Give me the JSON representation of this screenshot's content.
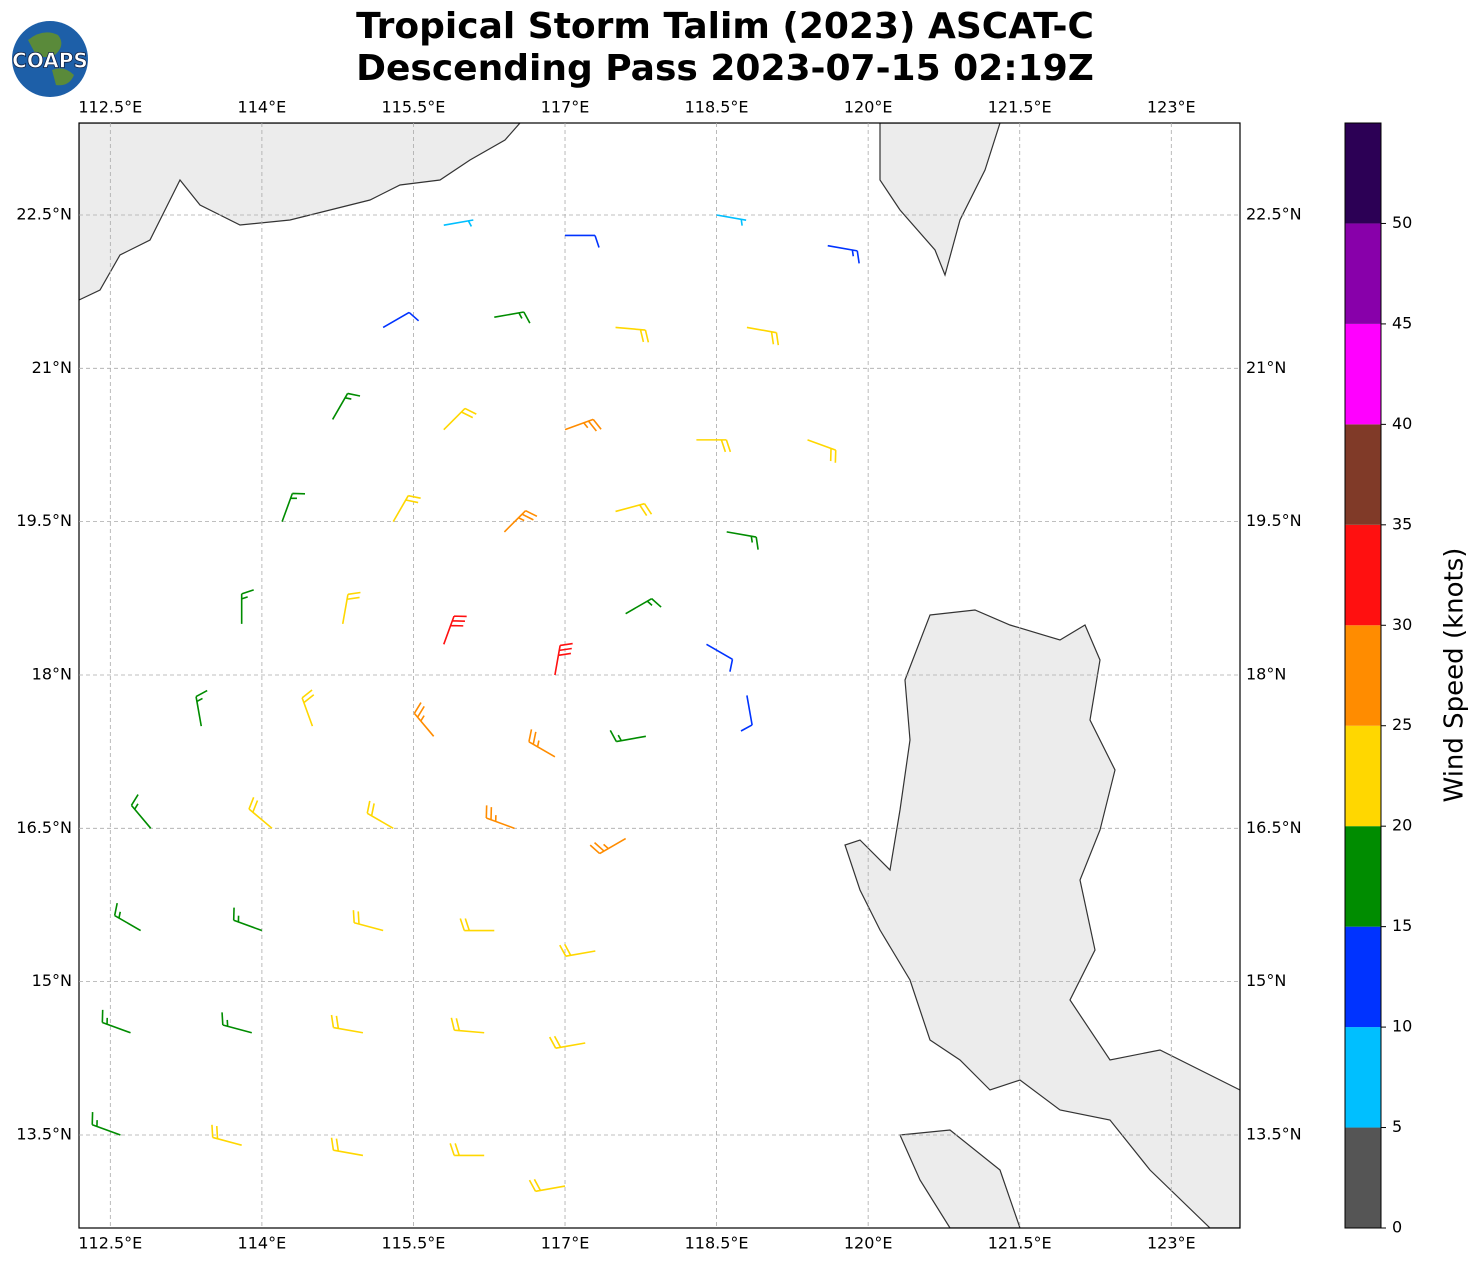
{
  "chart_data": {
    "type": "wind-barb",
    "title_line1": "Tropical Storm Talim (2023) ASCAT-C",
    "title_line2": "Descending Pass 2023-07-15 02:19Z",
    "logo": "COAPS",
    "xlim": [
      112.19,
      123.68
    ],
    "ylim": [
      12.59,
      23.4
    ],
    "xticks": [
      {
        "value": 112.5,
        "label": "112.5°E"
      },
      {
        "value": 114,
        "label": "114°E"
      },
      {
        "value": 115.5,
        "label": "115.5°E"
      },
      {
        "value": 117,
        "label": "117°E"
      },
      {
        "value": 118.5,
        "label": "118.5°E"
      },
      {
        "value": 120,
        "label": "120°E"
      },
      {
        "value": 121.5,
        "label": "121.5°E"
      },
      {
        "value": 123,
        "label": "123°E"
      }
    ],
    "yticks": [
      {
        "value": 22.5,
        "label": "22.5°N"
      },
      {
        "value": 21,
        "label": "21°N"
      },
      {
        "value": 19.5,
        "label": "19.5°N"
      },
      {
        "value": 18,
        "label": "18°N"
      },
      {
        "value": 16.5,
        "label": "16.5°N"
      },
      {
        "value": 15,
        "label": "15°N"
      },
      {
        "value": 13.5,
        "label": "13.5°N"
      }
    ],
    "grid": true,
    "barbs": {
      "lon": [
        115.8,
        117,
        118.5,
        119.6,
        115.2,
        116.3,
        117.5,
        118.8,
        114.7,
        115.8,
        117,
        118.3,
        119.4,
        114.2,
        115.3,
        116.4,
        117.5,
        118.6,
        113.8,
        114.8,
        115.8,
        116.9,
        117.6,
        118.4,
        118.8,
        113.4,
        114.5,
        115.7,
        116.9,
        117.8,
        112.9,
        114.1,
        115.3,
        116.5,
        117.6,
        112.8,
        114,
        115.2,
        116.3,
        117.3,
        112.7,
        113.9,
        115,
        116.2,
        117.2,
        112.6,
        113.8,
        115,
        116.2,
        117
      ],
      "lat": [
        22.4,
        22.3,
        22.5,
        22.2,
        21.4,
        21.5,
        21.4,
        21.4,
        20.5,
        20.4,
        20.4,
        20.3,
        20.3,
        19.5,
        19.5,
        19.4,
        19.6,
        19.4,
        18.5,
        18.5,
        18.3,
        18,
        18.6,
        18.3,
        17.8,
        17.5,
        17.5,
        17.4,
        17.2,
        17.4,
        16.5,
        16.5,
        16.5,
        16.5,
        16.4,
        15.5,
        15.5,
        15.5,
        15.5,
        15.3,
        14.5,
        14.5,
        14.5,
        14.5,
        14.4,
        13.5,
        13.4,
        13.3,
        13.3,
        13
      ],
      "speed": [
        8,
        12,
        8,
        14,
        12,
        17,
        22,
        22,
        17,
        22,
        27,
        22,
        20,
        17,
        22,
        27,
        20,
        18,
        17,
        22,
        32,
        32,
        15,
        12,
        12,
        17,
        22,
        27,
        27,
        15,
        17,
        20,
        22,
        27,
        27,
        15,
        17,
        20,
        20,
        22,
        17,
        17,
        20,
        20,
        22,
        17,
        20,
        20,
        20,
        22
      ],
      "direction": [
        80,
        90,
        100,
        100,
        60,
        80,
        95,
        100,
        30,
        45,
        70,
        90,
        110,
        20,
        30,
        45,
        75,
        100,
        0,
        10,
        20,
        10,
        60,
        120,
        170,
        350,
        340,
        320,
        300,
        260,
        320,
        310,
        300,
        290,
        240,
        300,
        290,
        285,
        270,
        260,
        290,
        285,
        280,
        275,
        260,
        290,
        285,
        280,
        270,
        260
      ]
    },
    "colorbar": {
      "label": "Wind Speed (knots)",
      "bounds": [
        0,
        5,
        10,
        15,
        20,
        25,
        30,
        35,
        40,
        45,
        50,
        55
      ],
      "colors": [
        "#555555",
        "#00bfff",
        "#0033ff",
        "#008c00",
        "#ffd700",
        "#ff8c00",
        "#ff1010",
        "#803a28",
        "#ff00ff",
        "#8800aa",
        "#2c0055"
      ],
      "ticks": [
        0,
        5,
        10,
        15,
        20,
        25,
        30,
        35,
        40,
        45,
        50
      ]
    }
  }
}
